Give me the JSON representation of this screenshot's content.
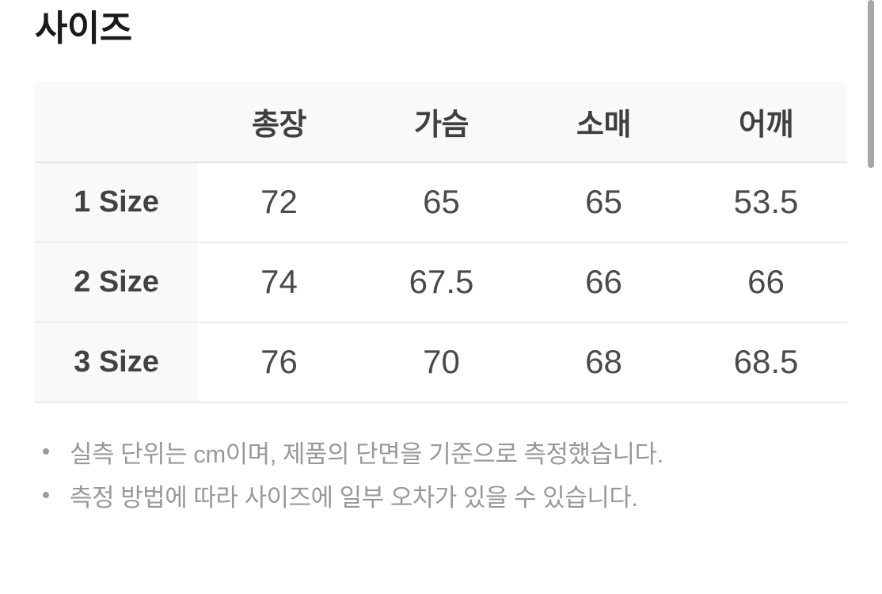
{
  "section": {
    "title": "사이즈"
  },
  "size_table": {
    "columns": [
      "총장",
      "가슴",
      "소매",
      "어깨"
    ],
    "rows": [
      {
        "label": "1 Size",
        "values": [
          "72",
          "65",
          "65",
          "53.5"
        ]
      },
      {
        "label": "2 Size",
        "values": [
          "74",
          "67.5",
          "66",
          "66"
        ]
      },
      {
        "label": "3 Size",
        "values": [
          "76",
          "70",
          "68",
          "68.5"
        ]
      }
    ]
  },
  "notes": [
    "실측 단위는 cm이며, 제품의 단면을 기준으로 측정했습니다.",
    "측정 방법에 따라 사이즈에 일부 오차가 있을 수 있습니다."
  ],
  "colors": {
    "header_bg": "#f9f9f9",
    "header_border": "#e2e2e2",
    "row_border": "#ececec",
    "title_text": "#1a1a1a",
    "table_text": "#4a4a4a",
    "note_text": "#999999",
    "scrollbar_thumb": "#a6a6a6"
  }
}
